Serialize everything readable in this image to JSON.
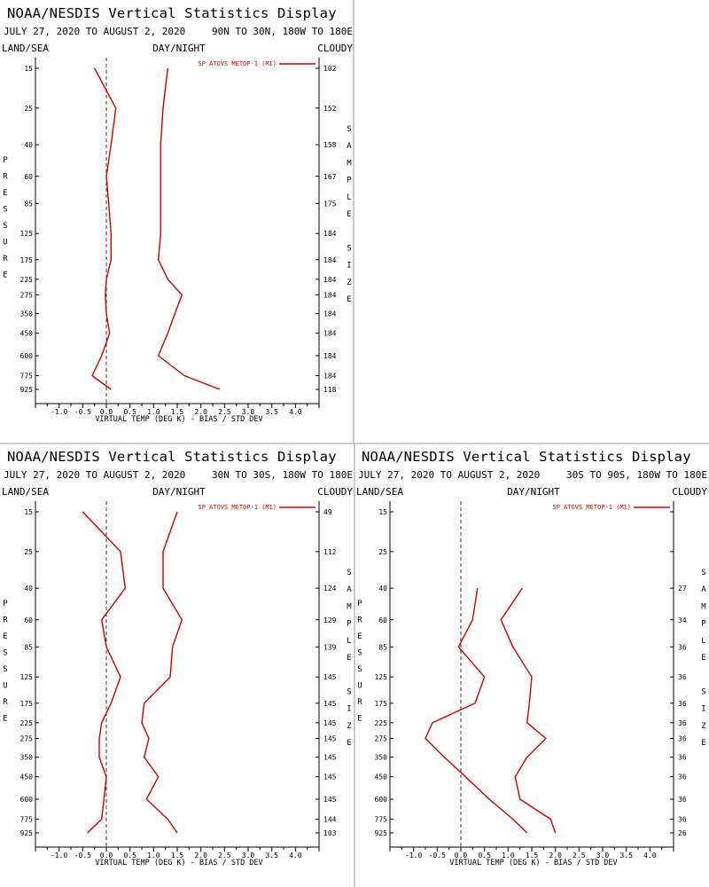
{
  "colors": {
    "line": "#cc0000",
    "axis": "#000000",
    "zero_line": "#000000",
    "divider": "#999999"
  },
  "panels": [
    {
      "title": "NOAA/NESDIS Vertical Statistics Display",
      "date_range": "JULY 27, 2020 TO AUGUST 2, 2020",
      "region": "90N TO 30N, 180W TO 180E",
      "label_left": "LAND/SEA",
      "label_center": "DAY/NIGHT",
      "label_right": "CLOUDY"
    },
    {
      "title": "NOAA/NESDIS Vertical Statistics Display",
      "date_range": "JULY 27, 2020 TO AUGUST 2, 2020",
      "region": "30N TO 30S, 180W TO 180E",
      "label_left": "LAND/SEA",
      "label_center": "DAY/NIGHT",
      "label_right": "CLOUDY"
    },
    {
      "title": "NOAA/NESDIS Vertical Statistics Display",
      "date_range": "JULY 27, 2020 TO AUGUST 2, 2020",
      "region": "30S TO 90S, 180W TO 180E",
      "label_left": "LAND/SEA",
      "label_center": "DAY/NIGHT",
      "label_right": "CLOUDY"
    }
  ],
  "chart_data": [
    {
      "type": "line",
      "legend": "SP ATOVS METOP-1 (M1)",
      "xlabel": "VIRTUAL TEMP (DEG K) - BIAS / STD DEV",
      "ylabel": "PRESSURE",
      "y2label": "SAMPLE SIZE",
      "xlim": [
        -1.5,
        4.5
      ],
      "xticks": [
        "-1.0",
        "-0.5",
        "0.0",
        "0.5",
        "1.0",
        "1.5",
        "2.0",
        "2.5",
        "3.0",
        "3.5",
        "4.0"
      ],
      "y": [
        15,
        25,
        40,
        60,
        85,
        125,
        175,
        225,
        275,
        350,
        450,
        600,
        775,
        925
      ],
      "sample_size": [
        "102",
        "152",
        "158",
        "167",
        "175",
        "184",
        "184",
        "184",
        "184",
        "184",
        "184",
        "184",
        "184",
        "118"
      ],
      "series": [
        {
          "name": "BIAS",
          "values": [
            -0.25,
            0.2,
            0.1,
            0.0,
            0.05,
            0.1,
            0.1,
            0.0,
            -0.02,
            0.0,
            0.07,
            -0.1,
            -0.3,
            0.1
          ]
        },
        {
          "name": "STD DEV",
          "values": [
            1.3,
            1.2,
            1.15,
            1.15,
            1.15,
            1.15,
            1.1,
            1.3,
            1.6,
            1.45,
            1.3,
            1.1,
            1.65,
            2.4
          ]
        }
      ]
    },
    {
      "type": "line",
      "legend": "SP ATOVS METOP-1 (M1)",
      "xlabel": "VIRTUAL TEMP (DEG K) - BIAS / STD DEV",
      "ylabel": "PRESSURE",
      "y2label": "SAMPLE SIZE",
      "xlim": [
        -1.5,
        4.5
      ],
      "xticks": [
        "-1.0",
        "-0.5",
        "0.0",
        "0.5",
        "1.0",
        "1.5",
        "2.0",
        "2.5",
        "3.0",
        "3.5",
        "4.0"
      ],
      "y": [
        15,
        25,
        40,
        60,
        85,
        125,
        175,
        225,
        275,
        350,
        450,
        600,
        775,
        925
      ],
      "sample_size": [
        "49",
        "112",
        "124",
        "129",
        "139",
        "145",
        "145",
        "145",
        "145",
        "145",
        "145",
        "145",
        "144",
        "103"
      ],
      "series": [
        {
          "name": "BIAS",
          "values": [
            -0.5,
            0.3,
            0.4,
            -0.1,
            0.0,
            0.3,
            0.1,
            -0.1,
            -0.15,
            -0.15,
            0.0,
            -0.05,
            -0.1,
            -0.4
          ]
        },
        {
          "name": "STD DEV",
          "values": [
            1.5,
            1.2,
            1.2,
            1.6,
            1.4,
            1.35,
            0.8,
            0.75,
            0.9,
            0.8,
            1.1,
            0.85,
            1.3,
            1.5
          ]
        }
      ]
    },
    {
      "type": "line",
      "legend": "SP ATOVS METOP-1 (M1)",
      "xlabel": "VIRTUAL TEMP (DEG K) - BIAS / STD DEV",
      "ylabel": "PRESSURE",
      "y2label": "SAMPLE SIZE",
      "xlim": [
        -1.5,
        4.5
      ],
      "xticks": [
        "-1.0",
        "-0.5",
        "0.0",
        "0.5",
        "1.0",
        "1.5",
        "2.0",
        "2.5",
        "3.0",
        "3.5",
        "4.0"
      ],
      "y": [
        15,
        25,
        40,
        60,
        85,
        125,
        175,
        225,
        275,
        350,
        450,
        600,
        775,
        925
      ],
      "sample_size": [
        "",
        "",
        "27",
        "34",
        "36",
        "36",
        "36",
        "36",
        "36",
        "36",
        "36",
        "36",
        "36",
        "26"
      ],
      "series": [
        {
          "name": "BIAS",
          "values": [
            null,
            null,
            0.35,
            0.25,
            -0.05,
            0.5,
            0.3,
            -0.6,
            -0.75,
            -0.35,
            0.1,
            0.6,
            1.1,
            1.4
          ]
        },
        {
          "name": "STD DEV",
          "values": [
            null,
            null,
            1.3,
            0.85,
            1.1,
            1.5,
            1.45,
            1.4,
            1.8,
            1.4,
            1.15,
            1.25,
            1.9,
            2.0
          ]
        }
      ]
    }
  ]
}
